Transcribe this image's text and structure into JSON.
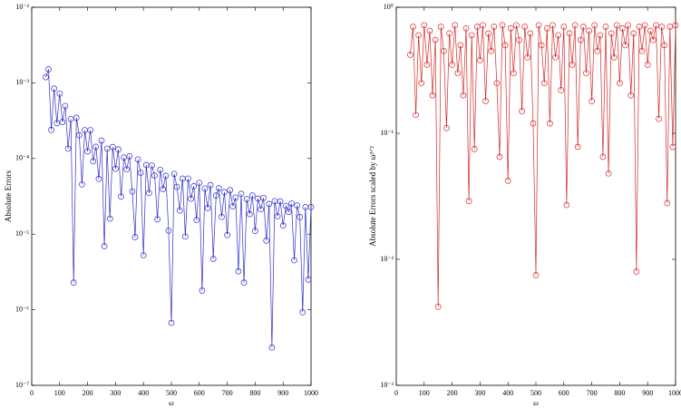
{
  "chart_data": [
    {
      "type": "line",
      "marker": "circle",
      "ylabel": "Absolute Errors",
      "xlabel": "ω",
      "log_y": true,
      "xlim": [
        0,
        1000
      ],
      "xticks": [
        0,
        100,
        200,
        300,
        400,
        500,
        600,
        700,
        800,
        900,
        1000
      ],
      "ylim": [
        1e-07,
        0.01
      ],
      "yticks": [
        {
          "value": 1e-07,
          "label": "10⁻⁷"
        },
        {
          "value": 1e-06,
          "label": "10⁻⁶"
        },
        {
          "value": 1e-05,
          "label": "10⁻⁵"
        },
        {
          "value": 0.0001,
          "label": "10⁻⁴"
        },
        {
          "value": 0.001,
          "label": "10⁻³"
        },
        {
          "value": 0.01,
          "label": "10⁻²"
        }
      ],
      "x": [
        50,
        60,
        70,
        80,
        90,
        100,
        110,
        120,
        130,
        140,
        150,
        160,
        170,
        180,
        190,
        200,
        210,
        220,
        230,
        240,
        250,
        260,
        270,
        280,
        290,
        300,
        310,
        320,
        330,
        340,
        350,
        360,
        370,
        380,
        390,
        400,
        410,
        420,
        430,
        440,
        450,
        460,
        470,
        480,
        490,
        500,
        510,
        520,
        530,
        540,
        550,
        560,
        570,
        580,
        590,
        600,
        610,
        620,
        630,
        640,
        650,
        660,
        670,
        680,
        690,
        700,
        710,
        720,
        730,
        740,
        750,
        760,
        770,
        780,
        790,
        800,
        810,
        820,
        830,
        840,
        850,
        860,
        870,
        880,
        890,
        900,
        910,
        920,
        930,
        940,
        950,
        960,
        970,
        980,
        990,
        1000
      ],
      "series": [
        {
          "color": "#2f2fc8",
          "values": [
            0.00119,
            0.00151,
            0.000239,
            0.000839,
            0.000293,
            0.00072,
            0.000303,
            0.000494,
            0.000135,
            0.000332,
            2.29e-06,
            0.000346,
            0.000203,
            4.55e-05,
            0.000237,
            0.000124,
            0.000237,
            9.19e-05,
            0.000143,
            5.38e-05,
            0.000172,
            6.92e-06,
            0.000135,
            1.6e-05,
            0.000142,
            7.31e-05,
            0.000132,
            3.14e-05,
            0.000103,
            7.18e-05,
            0.000107,
            3.66e-05,
            9.13e-06,
            9.72e-05,
            6.49e-05,
            5.25e-06,
            8.19e-05,
            3.49e-05,
            8.07e-05,
            5.96e-05,
            1.57e-05,
            7.1e-05,
            3.93e-05,
            5.9e-05,
            1.11e-05,
            6.71e-07,
            6.25e-05,
            4.22e-05,
            2.05e-05,
            5.42e-05,
            9.3e-06,
            5.43e-05,
            2.94e-05,
            4.3e-05,
            1.54e-05,
            4.76e-05,
            1.79e-06,
            4.02e-05,
            2.21e-05,
            4.45e-05,
            4.71e-06,
            3.24e-05,
            4.04e-05,
            1.69e-05,
            3.59e-05,
            9.72e-06,
            3.81e-05,
            2.33e-05,
            3.04e-05,
            3.23e-06,
            3.41e-05,
            2.29e-06,
            2.9e-05,
            1.84e-05,
            3.24e-05,
            1.1e-05,
            2.95e-05,
            2.13e-05,
            3.01e-05,
            8.21e-06,
            2.5e-05,
            3.17e-07,
            2.73e-05,
            1.72e-05,
            2.71e-05,
            1.3e-05,
            2.37e-05,
            1.97e-05,
            2.54e-05,
            4.51e-06,
            2.39e-05,
            1.68e-05,
            9.27e-07,
            2.28e-05,
            2.5e-06,
            2.28e-05
          ]
        }
      ]
    },
    {
      "type": "line",
      "marker": "circle",
      "ylabel": "Absolute Errors scaled by ω³ᐟ²",
      "xlabel": "ω",
      "log_y": true,
      "xlim": [
        0,
        1000
      ],
      "xticks": [
        0,
        100,
        200,
        300,
        400,
        500,
        600,
        700,
        800,
        900,
        1000
      ],
      "ylim": [
        0.001,
        1
      ],
      "yticks": [
        {
          "value": 0.001,
          "label": "10⁻³"
        },
        {
          "value": 0.01,
          "label": "10⁻²"
        },
        {
          "value": 0.1,
          "label": "10⁻¹"
        },
        {
          "value": 1,
          "label": "10⁰"
        }
      ],
      "x": [
        50,
        60,
        70,
        80,
        90,
        100,
        110,
        120,
        130,
        140,
        150,
        160,
        170,
        180,
        190,
        200,
        210,
        220,
        230,
        240,
        250,
        260,
        270,
        280,
        290,
        300,
        310,
        320,
        330,
        340,
        350,
        360,
        370,
        380,
        390,
        400,
        410,
        420,
        430,
        440,
        450,
        460,
        470,
        480,
        490,
        500,
        510,
        520,
        530,
        540,
        550,
        560,
        570,
        580,
        590,
        600,
        610,
        620,
        630,
        640,
        650,
        660,
        670,
        680,
        690,
        700,
        710,
        720,
        730,
        740,
        750,
        760,
        770,
        780,
        790,
        800,
        810,
        820,
        830,
        840,
        850,
        860,
        870,
        880,
        890,
        900,
        910,
        920,
        930,
        940,
        950,
        960,
        970,
        980,
        990,
        1000
      ],
      "series": [
        {
          "color": "#d42a2a",
          "values": [
            0.42,
            0.7,
            0.14,
            0.6,
            0.25,
            0.72,
            0.35,
            0.65,
            0.2,
            0.55,
            0.0042,
            0.7,
            0.45,
            0.11,
            0.62,
            0.35,
            0.72,
            0.3,
            0.5,
            0.2,
            0.68,
            0.029,
            0.6,
            0.075,
            0.7,
            0.38,
            0.72,
            0.18,
            0.62,
            0.45,
            0.7,
            0.25,
            0.065,
            0.72,
            0.5,
            0.042,
            0.68,
            0.3,
            0.72,
            0.55,
            0.15,
            0.7,
            0.4,
            0.62,
            0.12,
            0.0075,
            0.72,
            0.5,
            0.25,
            0.68,
            0.12,
            0.72,
            0.4,
            0.6,
            0.22,
            0.7,
            0.027,
            0.62,
            0.35,
            0.72,
            0.078,
            0.55,
            0.7,
            0.3,
            0.65,
            0.18,
            0.72,
            0.45,
            0.6,
            0.065,
            0.7,
            0.048,
            0.62,
            0.4,
            0.72,
            0.25,
            0.68,
            0.5,
            0.72,
            0.2,
            0.62,
            0.008,
            0.7,
            0.45,
            0.72,
            0.35,
            0.65,
            0.55,
            0.72,
            0.13,
            0.7,
            0.5,
            0.028,
            0.7,
            0.078,
            0.72
          ]
        }
      ]
    }
  ]
}
